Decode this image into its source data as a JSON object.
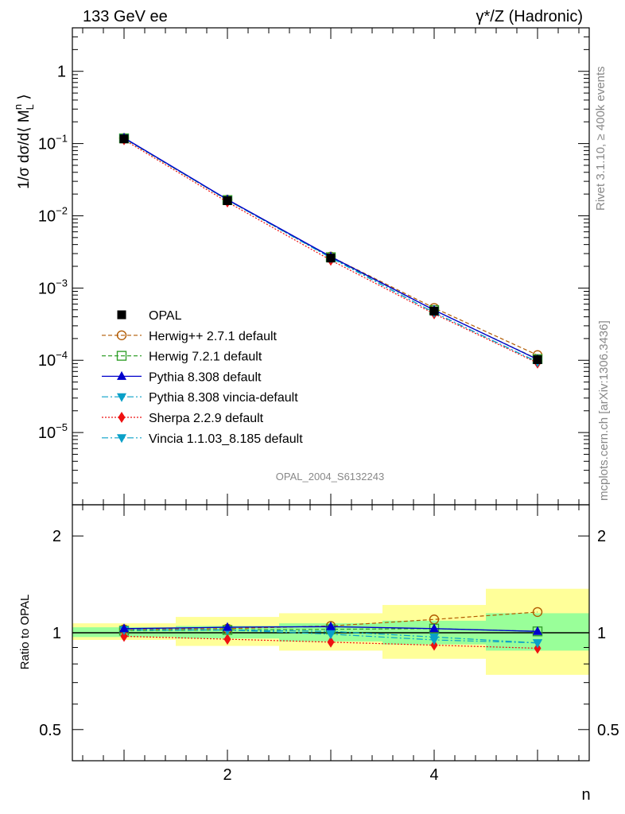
{
  "header": {
    "left_label": "133 GeV ee",
    "right_label": "γ*/Z (Hadronic)"
  },
  "side_labels": {
    "rivet": "Rivet 3.1.10, ≥ 400k events",
    "mcplots": "mcplots.cern.ch [arXiv:1306.3436]"
  },
  "analysis_id": "OPAL_2004_S6132243",
  "colors": {
    "opal": "#000000",
    "herwigpp": "#b15a00",
    "herwig7": "#33a02c",
    "pythia": "#0000cc",
    "pythia_vincia": "#0aa0c8",
    "sherpa": "#ee1111",
    "vincia": "#0aa0c8",
    "band_inner": "#99ff99",
    "band_outer": "#ffff99"
  },
  "chart_data": [
    {
      "type": "line",
      "scale": "log",
      "title": "",
      "ylabel": "1/σ dσ/d⟨ M_L^n ⟩",
      "xlabel": "n",
      "xlim": [
        0.5,
        5.5
      ],
      "ylim": [
        1e-06,
        4
      ],
      "y_ticks": [
        {
          "value": 1,
          "label": "1"
        },
        {
          "value": 0.1,
          "label": "10",
          "exp": "−1"
        },
        {
          "value": 0.01,
          "label": "10",
          "exp": "−2"
        },
        {
          "value": 0.001,
          "label": "10",
          "exp": "−3"
        },
        {
          "value": 0.0001,
          "label": "10",
          "exp": "−4"
        },
        {
          "value": 1e-05,
          "label": "10",
          "exp": "−5"
        }
      ],
      "x": [
        1,
        2,
        3,
        4,
        5
      ],
      "legend_position": "bottom-left",
      "series": [
        {
          "key": "opal",
          "name": "OPAL",
          "values": [
            0.116,
            0.0162,
            0.0026,
            0.00048,
            0.000102
          ]
        },
        {
          "key": "herwigpp",
          "name": "Herwig++ 2.7.1 default",
          "values": [
            0.119,
            0.0167,
            0.00272,
            0.00053,
            0.000118
          ]
        },
        {
          "key": "herwig7",
          "name": "Herwig 7.2.1 default",
          "values": [
            0.118,
            0.0165,
            0.00267,
            0.000495,
            0.000104
          ]
        },
        {
          "key": "pythia",
          "name": "Pythia 8.308 default",
          "values": [
            0.12,
            0.0168,
            0.00272,
            0.000495,
            0.000103
          ]
        },
        {
          "key": "pythia_vincia",
          "name": "Pythia 8.308 vincia-default",
          "values": [
            0.119,
            0.0166,
            0.00262,
            0.000458,
            9.48e-05
          ]
        },
        {
          "key": "sherpa",
          "name": "Sherpa 2.2.9 default",
          "values": [
            0.113,
            0.0155,
            0.00243,
            0.00044,
            9.16e-05
          ]
        },
        {
          "key": "vincia",
          "name": "Vincia 1.1.03_8.185 default",
          "values": [
            0.119,
            0.0166,
            0.00262,
            0.000458,
            9.48e-05
          ]
        }
      ]
    },
    {
      "type": "line",
      "scale": "log",
      "title": "",
      "ylabel": "Ratio to OPAL",
      "xlabel": "n",
      "xlim": [
        0.5,
        5.5
      ],
      "ylim": [
        0.4,
        2.5
      ],
      "y_ticks": [
        {
          "value": 0.5,
          "label": "0.5"
        },
        {
          "value": 1,
          "label": "1"
        },
        {
          "value": 2,
          "label": "2"
        }
      ],
      "x_ticks": [
        {
          "value": 2,
          "label": "2"
        },
        {
          "value": 4,
          "label": "4"
        }
      ],
      "x": [
        1,
        2,
        3,
        4,
        5
      ],
      "bands": {
        "inner": [
          [
            0.97,
            1.04
          ],
          [
            0.96,
            1.05
          ],
          [
            0.94,
            1.07
          ],
          [
            0.92,
            1.09
          ],
          [
            0.88,
            1.15
          ]
        ],
        "outer": [
          [
            0.95,
            1.07
          ],
          [
            0.91,
            1.12
          ],
          [
            0.88,
            1.15
          ],
          [
            0.83,
            1.22
          ],
          [
            0.74,
            1.37
          ]
        ]
      },
      "series": [
        {
          "key": "herwigpp",
          "name": "Herwig++ 2.7.1 default",
          "values": [
            1.025,
            1.03,
            1.05,
            1.1,
            1.16
          ]
        },
        {
          "key": "herwig7",
          "name": "Herwig 7.2.1 default",
          "values": [
            1.015,
            1.02,
            1.025,
            1.03,
            1.01
          ]
        },
        {
          "key": "pythia",
          "name": "Pythia 8.308 default",
          "values": [
            1.03,
            1.04,
            1.045,
            1.03,
            1.01
          ]
        },
        {
          "key": "pythia_vincia",
          "name": "Pythia 8.308 vincia-default",
          "values": [
            1.02,
            1.02,
            1.01,
            0.97,
            0.93
          ]
        },
        {
          "key": "sherpa",
          "name": "Sherpa 2.2.9 default",
          "values": [
            0.975,
            0.955,
            0.935,
            0.915,
            0.895
          ]
        },
        {
          "key": "vincia",
          "name": "Vincia 1.1.03_8.185 default",
          "values": [
            1.02,
            1.02,
            0.99,
            0.95,
            0.93
          ]
        }
      ]
    }
  ]
}
